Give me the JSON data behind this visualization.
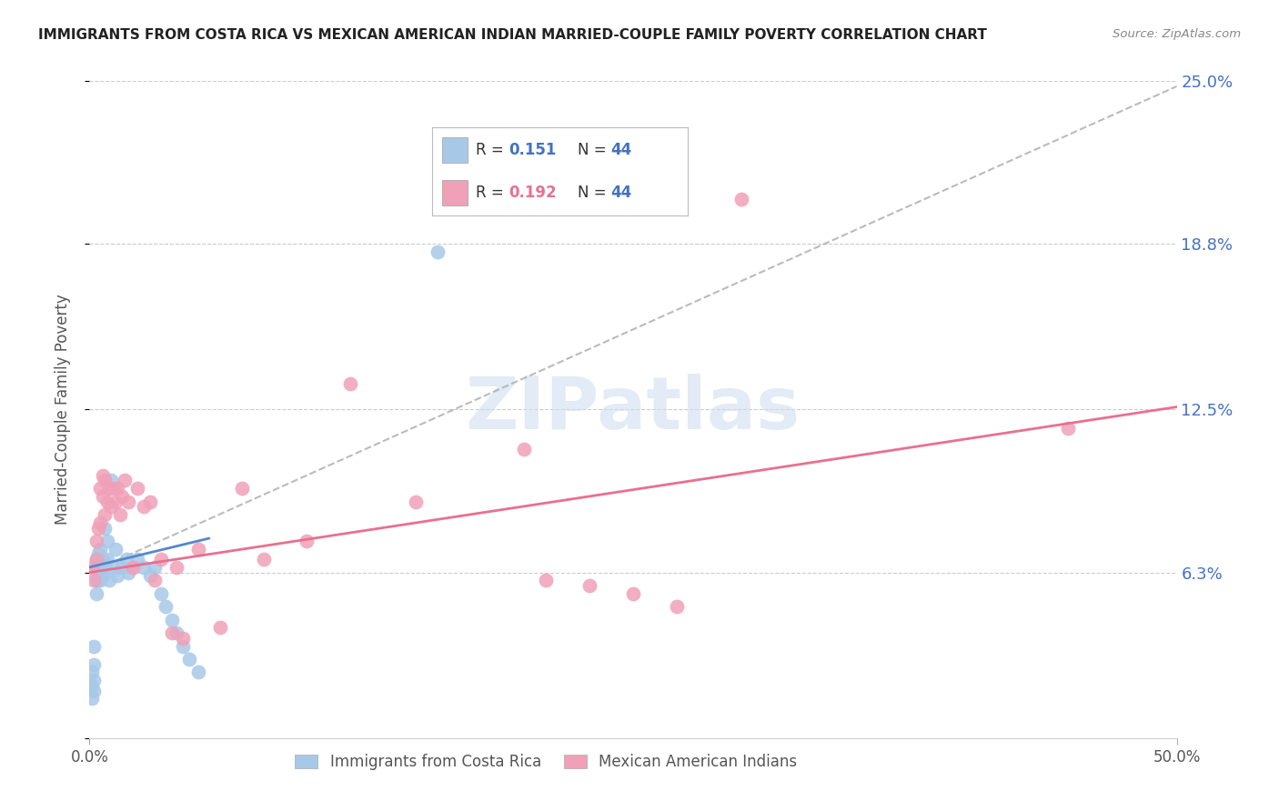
{
  "title": "IMMIGRANTS FROM COSTA RICA VS MEXICAN AMERICAN INDIAN MARRIED-COUPLE FAMILY POVERTY CORRELATION CHART",
  "source": "Source: ZipAtlas.com",
  "ylabel": "Married-Couple Family Poverty",
  "xlim": [
    0.0,
    0.5
  ],
  "ylim": [
    0.0,
    0.25
  ],
  "yticks": [
    0.0,
    0.063,
    0.125,
    0.188,
    0.25
  ],
  "ytick_labels": [
    "",
    "6.3%",
    "12.5%",
    "18.8%",
    "25.0%"
  ],
  "legend1_label": "Immigrants from Costa Rica",
  "legend2_label": "Mexican American Indians",
  "R1": "0.151",
  "N1": "44",
  "R2": "0.192",
  "N2": "44",
  "blue_color": "#a8c8e8",
  "pink_color": "#f0a0b8",
  "blue_line_color": "#5588cc",
  "pink_line_color": "#e87090",
  "gray_dash_color": "#aaaaaa",
  "watermark_color": "#d0dff0",
  "blue_scatter_x": [
    0.001,
    0.001,
    0.001,
    0.002,
    0.002,
    0.002,
    0.002,
    0.003,
    0.003,
    0.003,
    0.003,
    0.004,
    0.004,
    0.004,
    0.005,
    0.005,
    0.005,
    0.006,
    0.006,
    0.007,
    0.007,
    0.008,
    0.008,
    0.009,
    0.01,
    0.011,
    0.012,
    0.013,
    0.015,
    0.017,
    0.018,
    0.02,
    0.022,
    0.025,
    0.028,
    0.03,
    0.033,
    0.035,
    0.038,
    0.04,
    0.043,
    0.046,
    0.05,
    0.16
  ],
  "blue_scatter_y": [
    0.015,
    0.02,
    0.025,
    0.018,
    0.022,
    0.028,
    0.035,
    0.055,
    0.06,
    0.065,
    0.068,
    0.06,
    0.063,
    0.07,
    0.06,
    0.065,
    0.072,
    0.062,
    0.068,
    0.065,
    0.08,
    0.068,
    0.075,
    0.06,
    0.098,
    0.065,
    0.072,
    0.062,
    0.065,
    0.068,
    0.063,
    0.065,
    0.068,
    0.065,
    0.062,
    0.065,
    0.055,
    0.05,
    0.045,
    0.04,
    0.035,
    0.03,
    0.025,
    0.185
  ],
  "pink_scatter_x": [
    0.001,
    0.002,
    0.003,
    0.003,
    0.004,
    0.005,
    0.005,
    0.006,
    0.006,
    0.007,
    0.007,
    0.008,
    0.009,
    0.01,
    0.011,
    0.012,
    0.013,
    0.014,
    0.015,
    0.016,
    0.018,
    0.02,
    0.022,
    0.025,
    0.028,
    0.03,
    0.033,
    0.038,
    0.04,
    0.043,
    0.05,
    0.06,
    0.07,
    0.08,
    0.1,
    0.12,
    0.15,
    0.2,
    0.21,
    0.23,
    0.25,
    0.27,
    0.3,
    0.45
  ],
  "pink_scatter_y": [
    0.065,
    0.06,
    0.068,
    0.075,
    0.08,
    0.082,
    0.095,
    0.092,
    0.1,
    0.085,
    0.098,
    0.09,
    0.095,
    0.088,
    0.095,
    0.09,
    0.095,
    0.085,
    0.092,
    0.098,
    0.09,
    0.065,
    0.095,
    0.088,
    0.09,
    0.06,
    0.068,
    0.04,
    0.065,
    0.038,
    0.072,
    0.042,
    0.095,
    0.068,
    0.075,
    0.135,
    0.09,
    0.11,
    0.06,
    0.058,
    0.055,
    0.05,
    0.205,
    0.118
  ],
  "blue_line_x0": 0.0,
  "blue_line_x1": 0.055,
  "blue_line_y0": 0.065,
  "blue_line_y1": 0.076,
  "pink_line_x0": 0.0,
  "pink_line_x1": 0.5,
  "pink_line_y0": 0.063,
  "pink_line_y1": 0.126,
  "dash_line_x0": 0.0,
  "dash_line_x1": 0.5,
  "dash_line_y0": 0.063,
  "dash_line_y1": 0.248
}
